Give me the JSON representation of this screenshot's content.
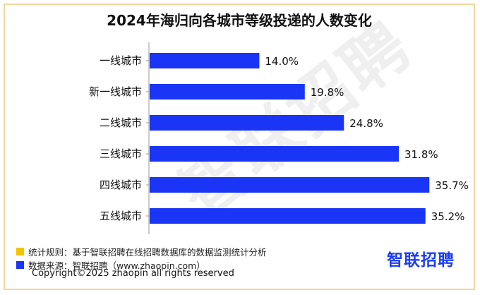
{
  "title": "2024年海归向各城市等级投递的人数变化",
  "watermark": "智联招聘",
  "chart_data": {
    "type": "bar",
    "orientation": "horizontal",
    "categories": [
      "一线城市",
      "新一线城市",
      "二线城市",
      "三线城市",
      "四线城市",
      "五线城市"
    ],
    "values": [
      14.0,
      19.8,
      24.8,
      31.8,
      35.7,
      35.2
    ],
    "value_labels": [
      "14.0%",
      "19.8%",
      "24.8%",
      "31.8%",
      "35.7%",
      "35.2%"
    ],
    "xlim": [
      0,
      40
    ],
    "grid": false,
    "bar_color": "#1a35f5"
  },
  "notes": [
    {
      "text": "统计规则：基于智联招聘在线招聘数据库的数据监测统计分析",
      "color": "#f5c400"
    },
    {
      "text": "数据来源：智联招聘（www.zhaopin.com）",
      "color": "#1a35f5"
    }
  ],
  "logo": "智联招聘",
  "copyright": "Copyright©2025 zhaopin all rights reserved"
}
